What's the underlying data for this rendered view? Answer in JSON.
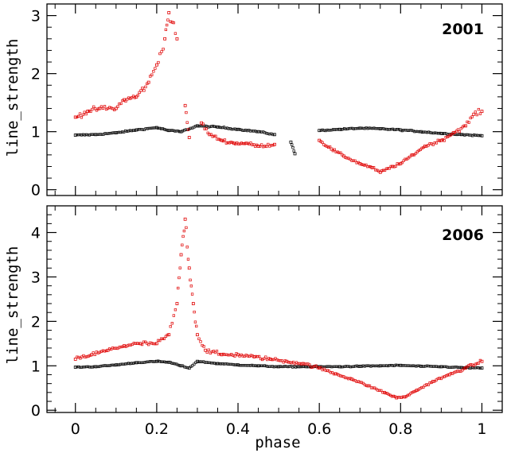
{
  "chart_data": [
    {
      "type": "scatter",
      "label": "2001",
      "xlim": [
        -0.07,
        1.05
      ],
      "ylim": [
        -0.1,
        3.2
      ],
      "yticks": [
        0,
        1,
        2,
        3
      ],
      "ylabel": "line_strength",
      "series": [
        {
          "color": "#000000",
          "segments": [
            [
              [
                0.0,
                0.94
              ],
              [
                0.05,
                0.95
              ],
              [
                0.1,
                0.98
              ],
              [
                0.15,
                1.03
              ],
              [
                0.2,
                1.07
              ],
              [
                0.23,
                1.02
              ],
              [
                0.26,
                1.0
              ],
              [
                0.3,
                1.1
              ],
              [
                0.35,
                1.08
              ],
              [
                0.4,
                1.04
              ],
              [
                0.45,
                1.0
              ],
              [
                0.49,
                0.95
              ]
            ],
            [
              [
                0.53,
                0.82
              ],
              [
                0.54,
                0.62
              ]
            ],
            [
              [
                0.6,
                1.02
              ],
              [
                0.65,
                1.04
              ],
              [
                0.7,
                1.06
              ],
              [
                0.75,
                1.05
              ],
              [
                0.8,
                1.03
              ],
              [
                0.85,
                1.0
              ],
              [
                0.9,
                0.97
              ],
              [
                0.95,
                0.95
              ],
              [
                1.0,
                0.93
              ]
            ]
          ]
        },
        {
          "color": "#e00000",
          "segments": [
            [
              [
                0.0,
                1.25
              ],
              [
                0.03,
                1.35
              ],
              [
                0.06,
                1.4
              ],
              [
                0.1,
                1.4
              ],
              [
                0.12,
                1.55
              ],
              [
                0.15,
                1.6
              ],
              [
                0.18,
                1.85
              ],
              [
                0.2,
                2.15
              ],
              [
                0.22,
                2.6
              ],
              [
                0.23,
                3.05
              ],
              [
                0.25,
                2.6
              ]
            ],
            [
              [
                0.27,
                1.45
              ],
              [
                0.28,
                0.9
              ]
            ],
            [
              [
                0.31,
                1.15
              ],
              [
                0.33,
                0.95
              ],
              [
                0.36,
                0.85
              ],
              [
                0.39,
                0.8
              ],
              [
                0.42,
                0.8
              ],
              [
                0.45,
                0.75
              ],
              [
                0.49,
                0.78
              ]
            ],
            [
              [
                0.6,
                0.85
              ],
              [
                0.63,
                0.7
              ],
              [
                0.66,
                0.58
              ],
              [
                0.7,
                0.45
              ],
              [
                0.73,
                0.38
              ],
              [
                0.75,
                0.3
              ],
              [
                0.78,
                0.4
              ],
              [
                0.8,
                0.45
              ],
              [
                0.83,
                0.6
              ],
              [
                0.86,
                0.75
              ],
              [
                0.9,
                0.85
              ],
              [
                0.93,
                0.98
              ],
              [
                0.96,
                1.1
              ],
              [
                0.98,
                1.3
              ],
              [
                1.0,
                1.35
              ]
            ]
          ]
        }
      ]
    },
    {
      "type": "scatter",
      "label": "2006",
      "xlim": [
        -0.07,
        1.05
      ],
      "ylim": [
        -0.05,
        4.6
      ],
      "yticks": [
        0,
        1,
        2,
        3,
        4
      ],
      "xticks": [
        0,
        0.2,
        0.4,
        0.6,
        0.8,
        1
      ],
      "xticklabels": [
        "0",
        "0.2",
        "0.4",
        "0.6",
        "0.8",
        "1"
      ],
      "xlabel": "phase",
      "ylabel": "line_strength",
      "series": [
        {
          "color": "#000000",
          "segments": [
            [
              [
                0.0,
                0.97
              ],
              [
                0.05,
                0.98
              ],
              [
                0.1,
                1.02
              ],
              [
                0.15,
                1.07
              ],
              [
                0.2,
                1.1
              ],
              [
                0.23,
                1.08
              ],
              [
                0.26,
                1.0
              ],
              [
                0.28,
                0.95
              ],
              [
                0.3,
                1.1
              ],
              [
                0.35,
                1.05
              ],
              [
                0.4,
                1.02
              ],
              [
                0.45,
                1.0
              ],
              [
                0.5,
                0.98
              ],
              [
                0.55,
                0.98
              ],
              [
                0.6,
                0.98
              ],
              [
                0.65,
                0.98
              ],
              [
                0.7,
                0.99
              ],
              [
                0.75,
                1.0
              ],
              [
                0.8,
                1.01
              ],
              [
                0.85,
                0.99
              ],
              [
                0.9,
                0.98
              ],
              [
                0.95,
                0.96
              ],
              [
                1.0,
                0.95
              ]
            ]
          ]
        },
        {
          "color": "#e00000",
          "segments": [
            [
              [
                0.0,
                1.15
              ],
              [
                0.04,
                1.25
              ],
              [
                0.08,
                1.35
              ],
              [
                0.12,
                1.45
              ],
              [
                0.16,
                1.5
              ],
              [
                0.2,
                1.5
              ],
              [
                0.23,
                1.7
              ],
              [
                0.25,
                2.4
              ],
              [
                0.26,
                3.5
              ],
              [
                0.27,
                4.3
              ],
              [
                0.28,
                3.2
              ],
              [
                0.29,
                2.4
              ],
              [
                0.3,
                1.7
              ],
              [
                0.32,
                1.35
              ],
              [
                0.36,
                1.25
              ],
              [
                0.4,
                1.25
              ],
              [
                0.44,
                1.2
              ],
              [
                0.48,
                1.15
              ],
              [
                0.52,
                1.1
              ],
              [
                0.56,
                1.05
              ],
              [
                0.6,
                0.95
              ],
              [
                0.64,
                0.82
              ],
              [
                0.68,
                0.7
              ],
              [
                0.72,
                0.55
              ],
              [
                0.76,
                0.4
              ],
              [
                0.79,
                0.28
              ],
              [
                0.81,
                0.3
              ],
              [
                0.84,
                0.45
              ],
              [
                0.88,
                0.65
              ],
              [
                0.92,
                0.8
              ],
              [
                0.96,
                0.95
              ],
              [
                1.0,
                1.1
              ]
            ]
          ]
        }
      ]
    }
  ]
}
